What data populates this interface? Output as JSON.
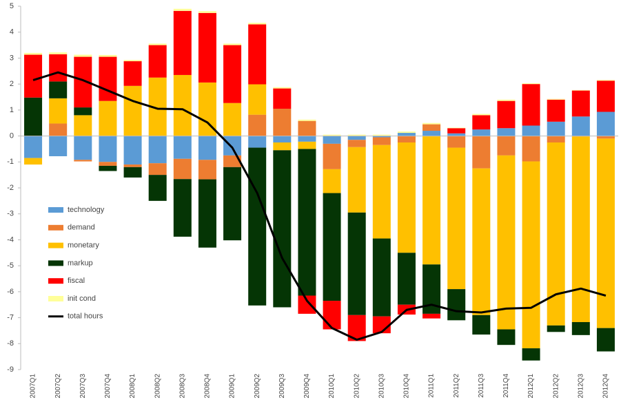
{
  "chart_data": {
    "type": "bar",
    "stacked": true,
    "categories": [
      "2007Q1",
      "2007Q2",
      "2007Q3",
      "2007Q4",
      "2008Q1",
      "2008Q2",
      "2008Q3",
      "2008Q4",
      "2009Q1",
      "2009Q2",
      "2009Q3",
      "2009Q4",
      "2010Q1",
      "2010Q2",
      "2010Q3",
      "2010Q4",
      "2011Q1",
      "2011Q2",
      "2011Q3",
      "2011Q4",
      "2012Q1",
      "2012Q2",
      "2012Q3",
      "2012Q4"
    ],
    "series": [
      {
        "name": "technology",
        "color": "#5b9bd5",
        "values": [
          -0.85,
          -0.78,
          -0.92,
          -1.0,
          -1.1,
          -1.05,
          -0.88,
          -0.92,
          -0.75,
          -0.45,
          -0.25,
          -0.22,
          -0.3,
          -0.15,
          -0.05,
          0.12,
          0.2,
          0.1,
          0.25,
          0.3,
          0.4,
          0.55,
          0.75,
          0.93
        ]
      },
      {
        "name": "demand",
        "color": "#ed7d31",
        "values": [
          0,
          0.48,
          -0.06,
          -0.15,
          -0.1,
          -0.45,
          -0.78,
          -0.75,
          -0.45,
          0.82,
          1.05,
          0.58,
          -0.98,
          -0.28,
          -0.3,
          -0.25,
          0.25,
          -0.45,
          -1.25,
          -0.75,
          -0.98,
          -0.25,
          -0.02,
          -0.1
        ]
      },
      {
        "name": "monetary",
        "color": "#ffc000",
        "values": [
          -0.25,
          0.97,
          0.8,
          1.35,
          1.93,
          2.25,
          2.35,
          2.06,
          1.27,
          1.17,
          -0.3,
          -0.28,
          -0.92,
          -2.52,
          -3.6,
          -4.25,
          -4.95,
          -5.45,
          -5.65,
          -6.7,
          -7.2,
          -7.05,
          -7.15,
          -7.3
        ]
      },
      {
        "name": "markup",
        "color": "#053505",
        "values": [
          1.48,
          0.65,
          0.3,
          -0.2,
          -0.4,
          -1.0,
          -2.22,
          -2.63,
          -2.82,
          -6.08,
          -6.05,
          -5.65,
          -4.15,
          -3.95,
          -3.0,
          -2.0,
          -1.9,
          -1.2,
          -0.75,
          -0.6,
          -0.47,
          -0.25,
          -0.5,
          -0.9
        ]
      },
      {
        "name": "fiscal",
        "color": "#ff0000",
        "values": [
          1.65,
          1.05,
          1.95,
          1.7,
          0.95,
          1.25,
          2.47,
          2.68,
          2.23,
          2.31,
          0.78,
          -0.7,
          -1.1,
          -1.0,
          -0.65,
          -0.38,
          -0.18,
          0.2,
          0.55,
          1.05,
          1.6,
          0.85,
          1.0,
          1.2
        ]
      },
      {
        "name": "init cond",
        "color": "#ffff99",
        "values": [
          0.07,
          0.07,
          0.08,
          0.07,
          0.05,
          0.06,
          0.08,
          0.07,
          0.06,
          0.06,
          0.05,
          0.05,
          0.05,
          0.05,
          0.05,
          0.05,
          0.05,
          0.02,
          0.05,
          0.05,
          0.03,
          0.03,
          0.02,
          0.03
        ]
      },
      {
        "name": "total hours",
        "color": "#000000",
        "type": "line",
        "values": [
          2.15,
          2.45,
          2.15,
          1.75,
          1.35,
          1.05,
          1.03,
          0.52,
          -0.45,
          -2.2,
          -4.7,
          -6.35,
          -7.4,
          -7.85,
          -7.55,
          -6.7,
          -6.5,
          -6.75,
          -6.8,
          -6.65,
          -6.62,
          -6.1,
          -5.88,
          -6.15
        ]
      }
    ],
    "ylim": [
      -9,
      5
    ],
    "yticks": [
      -9,
      -8,
      -7,
      -6,
      -5,
      -4,
      -3,
      -2,
      -1,
      0,
      1,
      2,
      3,
      4,
      5
    ],
    "grid": false,
    "legend": "left"
  }
}
